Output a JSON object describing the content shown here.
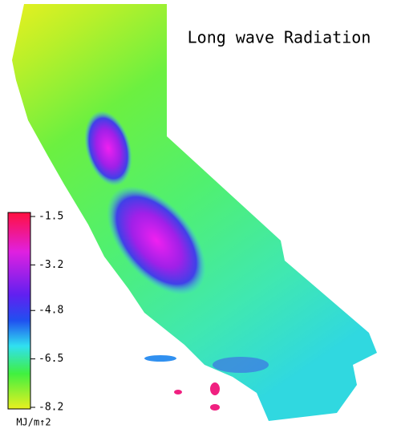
{
  "title": "Long wave Radiation",
  "colorbar": {
    "ticks": [
      -1.5,
      -3.2,
      -4.8,
      -6.5,
      -8.2
    ],
    "unit": "MJ/m↑2"
  }
}
